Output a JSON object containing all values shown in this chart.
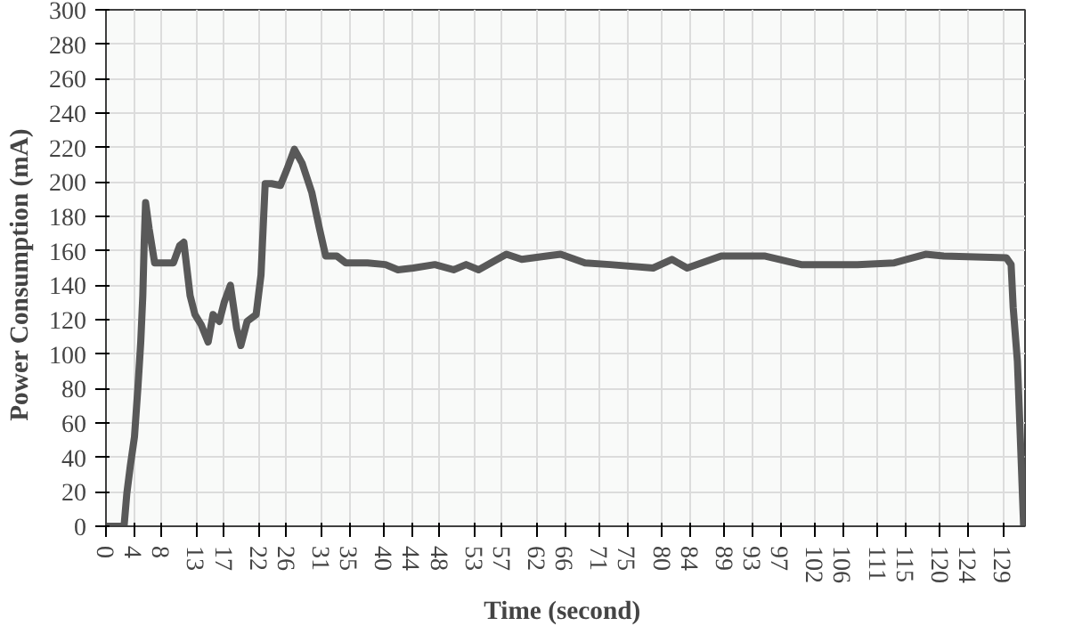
{
  "chart_data": {
    "type": "line",
    "xlabel": "Time  (second)",
    "ylabel": "Power  Consumption  (mA)",
    "xlim": [
      0,
      132.2
    ],
    "ylim": [
      0,
      300
    ],
    "xticks": [
      0,
      4,
      8,
      13,
      17,
      22,
      26,
      31,
      35,
      40,
      44,
      48,
      53,
      57,
      62,
      66,
      71,
      75,
      80,
      84,
      89,
      93,
      97,
      102,
      106,
      111,
      115,
      120,
      124,
      129
    ],
    "yticks": [
      0,
      20,
      40,
      60,
      80,
      100,
      120,
      140,
      160,
      180,
      200,
      220,
      240,
      260,
      280,
      300
    ],
    "grid": true,
    "marker": "none",
    "line_style": "solid",
    "series": [
      {
        "color": "#595959",
        "x": [
          0,
          2.6,
          3.0,
          3.5,
          4.1,
          4.6,
          5.0,
          5.3,
          5.5,
          5.7,
          6.2,
          7.0,
          9.7,
          10.6,
          11.2,
          12.1,
          12.8,
          13.7,
          14.7,
          15.4,
          16.3,
          17.0,
          17.9,
          18.8,
          19.4,
          20.3,
          21.6,
          22.3,
          22.9,
          23.8,
          25.1,
          26.0,
          27.1,
          28.2,
          29.6,
          30.7,
          31.6,
          33.2,
          34.5,
          37.6,
          40.2,
          42.0,
          44.2,
          47.3,
          50.0,
          51.8,
          53.6,
          57.6,
          59.8,
          63.4,
          65.4,
          68.9,
          72.5,
          78.7,
          81.4,
          83.6,
          88.5,
          94.7,
          100.0,
          108.1,
          113.4,
          117.9,
          120.5,
          129.5,
          130.2,
          130.5,
          131.1,
          131.4,
          132.0
        ],
        "values": [
          0,
          0,
          19,
          35,
          52,
          81,
          107,
          134,
          165,
          188,
          173,
          153,
          153,
          163,
          165,
          134,
          123,
          117,
          107,
          123,
          119,
          130,
          140,
          115,
          105,
          119,
          123,
          146,
          199,
          199,
          198,
          207,
          219,
          211,
          194,
          173,
          157,
          157,
          153,
          153,
          152,
          149,
          150,
          152,
          149,
          152,
          149,
          158,
          155,
          157,
          158,
          153,
          152,
          150,
          155,
          150,
          157,
          157,
          152,
          152,
          153,
          158,
          157,
          156,
          152,
          127,
          96,
          65,
          0
        ]
      }
    ]
  }
}
